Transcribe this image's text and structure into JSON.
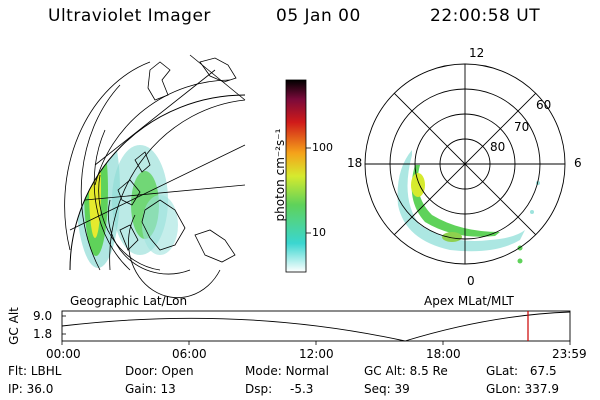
{
  "header": {
    "title": "Ultraviolet Imager",
    "date": "05 Jan 00",
    "time": "22:00:58 UT"
  },
  "left_panel": {
    "label": "Geographic Lat/Lon"
  },
  "colorbar": {
    "unit_label": "photon cm⁻²s⁻¹",
    "ticks": [
      "100",
      "10"
    ],
    "colors": [
      "#ffffff",
      "#3ad6d0",
      "#5fd25a",
      "#d6ea2e",
      "#f5a21a",
      "#d01a1a",
      "#7a0a3a",
      "#000000"
    ]
  },
  "right_panel": {
    "label": "Apex  MLat/MLT",
    "mlt_labels": [
      "12",
      "18",
      "6",
      "0"
    ],
    "mlat_labels": [
      "60",
      "70",
      "80"
    ]
  },
  "timeline": {
    "ylabel": "GC Alt",
    "y_ticks": [
      "9.0",
      "1.8"
    ],
    "x_ticks": [
      "00:00",
      "06:00",
      "12:00",
      "18:00",
      "23:59"
    ],
    "marker_color": "#cc0000"
  },
  "footer": {
    "row1": [
      {
        "label": "Flt:",
        "value": "LBHL"
      },
      {
        "label": "Door:",
        "value": "Open"
      },
      {
        "label": "Mode:",
        "value": "Normal"
      },
      {
        "label": "GC Alt:",
        "value": "8.5 Re"
      },
      {
        "label": "GLat:",
        "value": "67.5"
      }
    ],
    "row2": [
      {
        "label": "IP:",
        "value": "36.0"
      },
      {
        "label": "Gain:",
        "value": "13"
      },
      {
        "label": "Dsp:",
        "value": "-5.3"
      },
      {
        "label": "Seq:",
        "value": "39"
      },
      {
        "label": "GLon:",
        "value": "337.9"
      }
    ]
  }
}
